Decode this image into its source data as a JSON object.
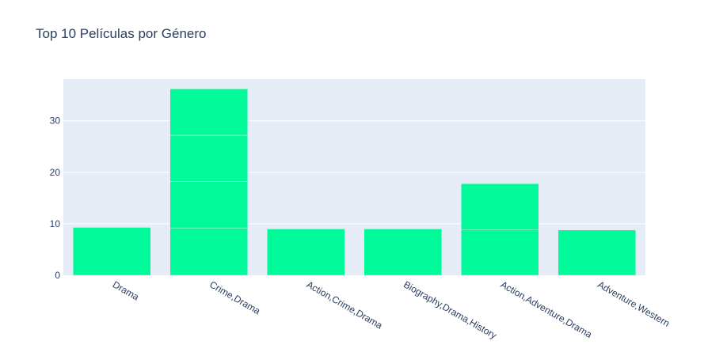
{
  "chart_data": {
    "type": "bar",
    "title": "Top 10 Películas por Género",
    "xlabel": "",
    "ylabel": "",
    "categories": [
      "Drama",
      "Crime,Drama",
      "Action,Crime,Drama",
      "Biography,Drama,History",
      "Action,Adventure,Drama",
      "Adventure,Western"
    ],
    "stacked_segments": [
      [
        9.3
      ],
      [
        9.2,
        9.0,
        9.0,
        9.0
      ],
      [
        9.0
      ],
      [
        9.0
      ],
      [
        8.8,
        9.0
      ],
      [
        8.8
      ]
    ],
    "values": [
      9.3,
      36.2,
      9.0,
      9.0,
      17.8,
      8.8
    ],
    "ylim": [
      0,
      38.1
    ],
    "yticks": [
      0,
      10,
      20,
      30
    ],
    "grid": true,
    "colors": {
      "bar": "#00fa9a",
      "plot_bg": "#e5ecf6",
      "grid": "#ffffff",
      "text": "#2a3f5f"
    }
  }
}
